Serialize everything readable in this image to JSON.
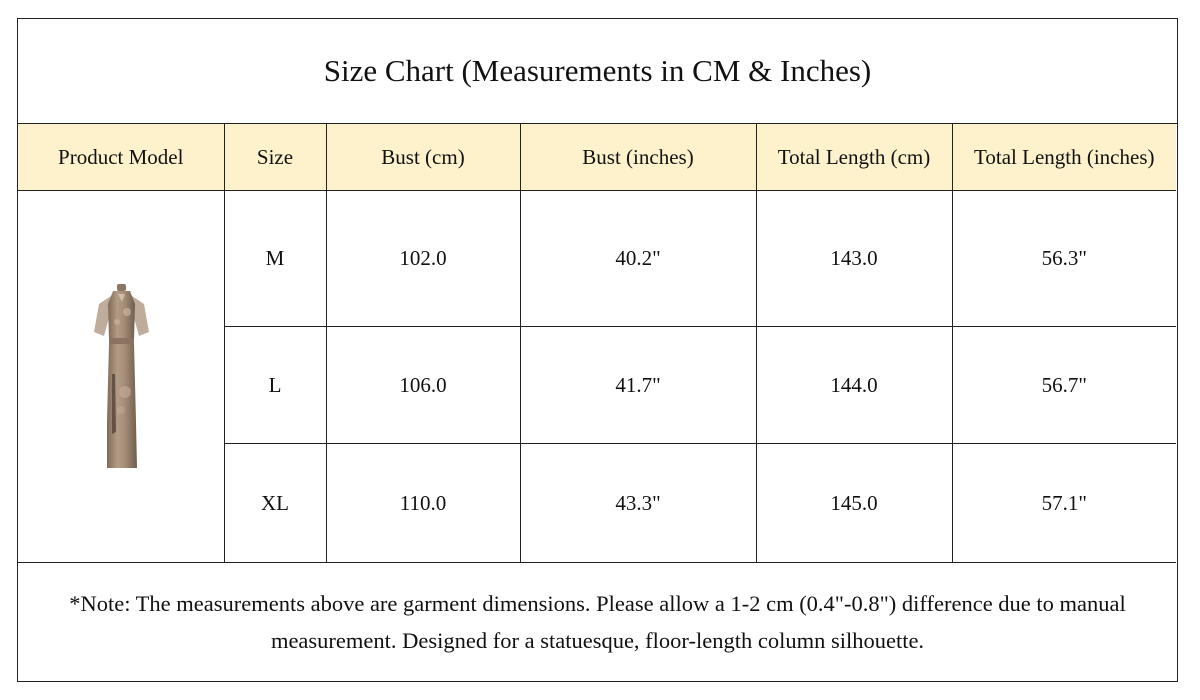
{
  "title": "Size Chart (Measurements in CM & Inches)",
  "columns": {
    "product_model": "Product Model",
    "size": "Size",
    "bust_cm": "Bust (cm)",
    "bust_in": "Bust (inches)",
    "length_cm": "Total Length (cm)",
    "length_in": "Total Length (inches)"
  },
  "rows": [
    {
      "size": "M",
      "bust_cm": "102.0",
      "bust_in": "40.2\"",
      "length_cm": "143.0",
      "length_in": "56.3\""
    },
    {
      "size": "L",
      "bust_cm": "106.0",
      "bust_in": "41.7\"",
      "length_cm": "144.0",
      "length_in": "56.7\""
    },
    {
      "size": "XL",
      "bust_cm": "110.0",
      "bust_in": "43.3\"",
      "length_cm": "145.0",
      "length_in": "57.1\""
    }
  ],
  "product_image": "dress-photo",
  "header_color": "#fdf2cc",
  "dress_color": "#a8907a",
  "note": "*Note: The measurements above are garment dimensions. Please allow a 1-2 cm (0.4\"-0.8\") difference due to manual measurement. Designed for a statuesque, floor-length column silhouette."
}
